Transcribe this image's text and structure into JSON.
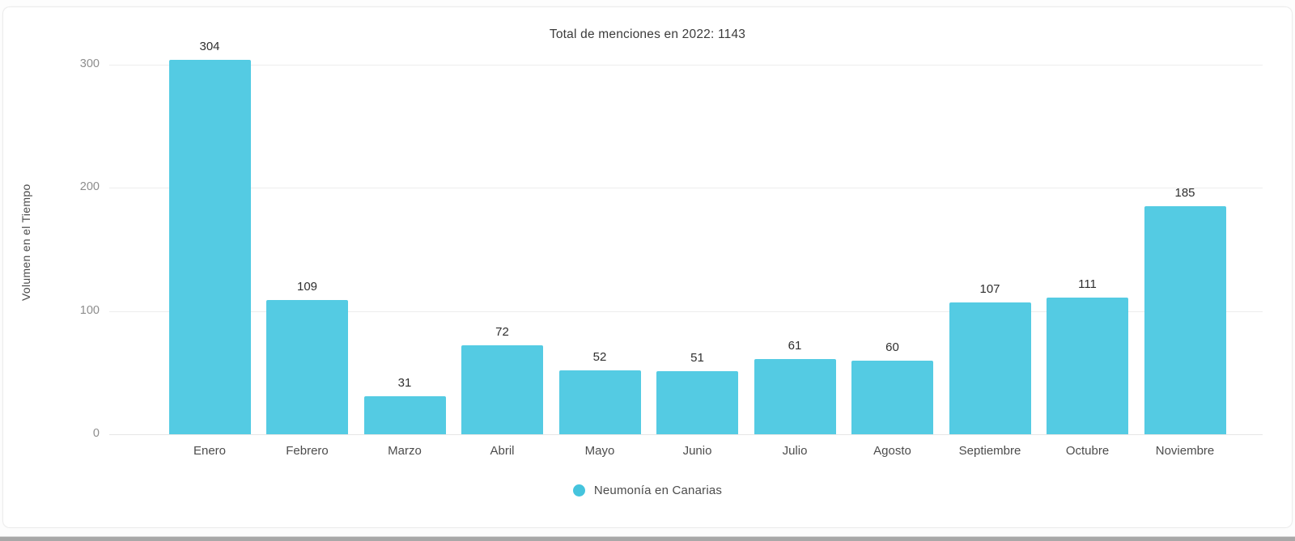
{
  "chart_data": {
    "type": "bar",
    "title": "Total de menciones en 2022: 1143",
    "xlabel": "",
    "ylabel": "Volumen en el Tiempo",
    "categories": [
      "Enero",
      "Febrero",
      "Marzo",
      "Abril",
      "Mayo",
      "Junio",
      "Julio",
      "Agosto",
      "Septiembre",
      "Octubre",
      "Noviembre"
    ],
    "values": [
      304,
      109,
      31,
      72,
      52,
      51,
      61,
      60,
      107,
      111,
      185
    ],
    "series_name": "Neumonía en Canarias",
    "total_mentions": 1143,
    "year": "2022",
    "yticks": [
      0,
      100,
      200,
      300
    ],
    "ylim": [
      0,
      305
    ],
    "grid": true,
    "data_labels": true,
    "legend_position": "bottom",
    "bar_color": "#54CBE3",
    "legend_dot_color": "#45C4DD"
  }
}
